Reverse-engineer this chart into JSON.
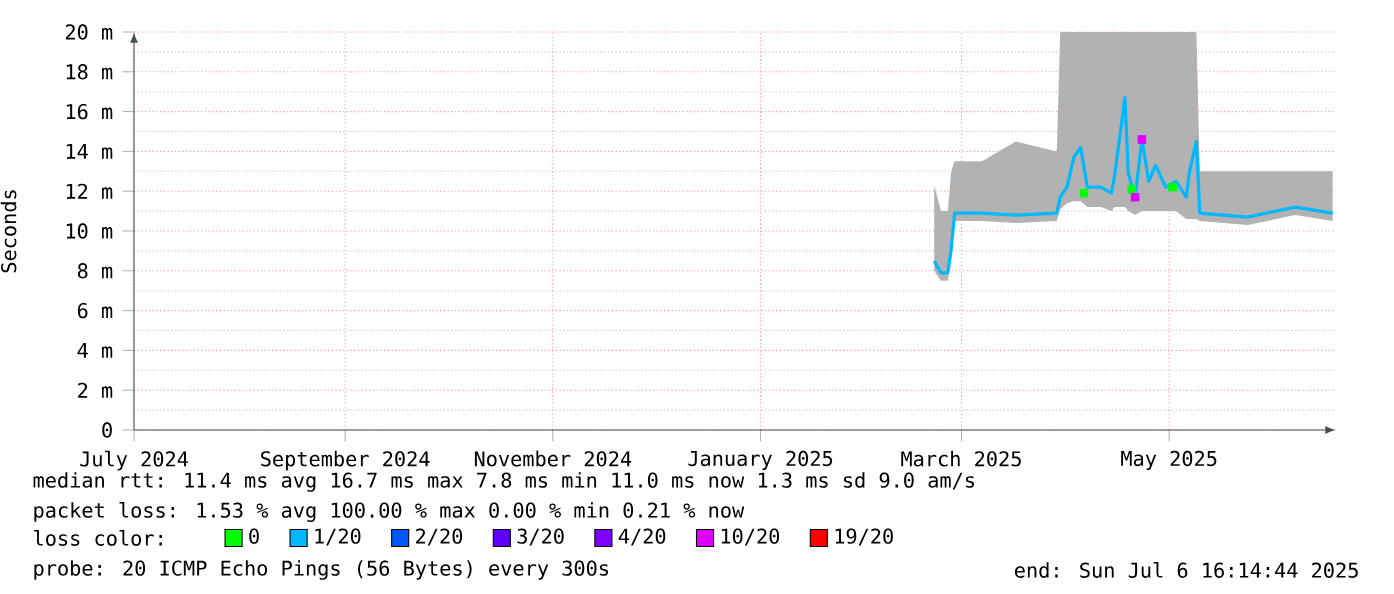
{
  "chart_data": {
    "type": "line",
    "ylabel": "Seconds",
    "xlim": [
      "2024-07-01",
      "2025-06-19"
    ],
    "xticks": [
      {
        "value": "2024-07-01",
        "label": "July 2024"
      },
      {
        "value": "2024-09-01",
        "label": "September 2024"
      },
      {
        "value": "2024-11-01",
        "label": "November 2024"
      },
      {
        "value": "2025-01-01",
        "label": "January 2025"
      },
      {
        "value": "2025-03-01",
        "label": "March 2025"
      },
      {
        "value": "2025-05-01",
        "label": "May 2025"
      }
    ],
    "ylim": [
      0,
      20
    ],
    "yticks": [
      0,
      {
        "value": 2,
        "label": "2 m"
      },
      {
        "value": 4,
        "label": "4 m"
      },
      {
        "value": 6,
        "label": "6 m"
      },
      {
        "value": 8,
        "label": "8 m"
      },
      {
        "value": 10,
        "label": "10 m"
      },
      {
        "value": 12,
        "label": "12 m"
      },
      {
        "value": 14,
        "label": "14 m"
      },
      {
        "value": 16,
        "label": "16 m"
      },
      {
        "value": 18,
        "label": "18 m"
      },
      {
        "value": 20,
        "label": "20 m"
      }
    ],
    "grid": true,
    "legend": "bottom",
    "legend_title": "loss color:",
    "series": [
      {
        "name": "0",
        "type": "scatter",
        "color": "#00ff00",
        "x": [
          "2025-04-06",
          "2025-04-20",
          "2025-05-02"
        ],
        "values": [
          11.9,
          12.1,
          12.2
        ]
      },
      {
        "name": "1/20",
        "color": "#00b8ff",
        "x": [
          "2025-02-21",
          "2025-02-23",
          "2025-02-25",
          "2025-02-26",
          "2025-02-27",
          "2025-03-07",
          "2025-03-17",
          "2025-03-29",
          "2025-03-30",
          "2025-04-01",
          "2025-04-03",
          "2025-04-05",
          "2025-04-07",
          "2025-04-11",
          "2025-04-14",
          "2025-04-15",
          "2025-04-18",
          "2025-04-19",
          "2025-04-21",
          "2025-04-23",
          "2025-04-25",
          "2025-04-27",
          "2025-04-30",
          "2025-05-03",
          "2025-05-06",
          "2025-05-07",
          "2025-05-09",
          "2025-05-10",
          "2025-05-24",
          "2025-06-07",
          "2025-06-18"
        ],
        "values": [
          8.5,
          7.9,
          7.9,
          9.1,
          10.9,
          10.9,
          10.8,
          10.9,
          11.7,
          12.2,
          13.7,
          14.2,
          12.2,
          12.2,
          11.9,
          12.8,
          16.7,
          12.9,
          11.7,
          14.6,
          12.5,
          13.3,
          12.2,
          12.5,
          11.7,
          13.0,
          14.5,
          10.9,
          10.7,
          11.2,
          10.9
        ],
        "lower": [
          8.0,
          7.5,
          7.5,
          8.6,
          10.5,
          10.5,
          10.4,
          10.5,
          11.1,
          11.4,
          11.5,
          11.5,
          11.2,
          11.2,
          11.0,
          11.2,
          11.2,
          11.0,
          10.8,
          11.0,
          11.0,
          11.0,
          11.0,
          11.0,
          10.6,
          10.6,
          10.6,
          10.5,
          10.3,
          10.8,
          10.5
        ],
        "upper": [
          12.3,
          11.0,
          11.0,
          13.0,
          13.5,
          13.5,
          14.5,
          14.0,
          20,
          20,
          20,
          20,
          20,
          20,
          20,
          20,
          20,
          20,
          20,
          20,
          20,
          20,
          20,
          20,
          20,
          20,
          20,
          13.0,
          13.0,
          13.0,
          13.0
        ]
      },
      {
        "name": "2/20",
        "type": "scatter",
        "color": "#0059ff"
      },
      {
        "name": "3/20",
        "type": "scatter",
        "color": "#5e00ff"
      },
      {
        "name": "4/20",
        "type": "scatter",
        "color": "#7e00ff"
      },
      {
        "name": "10/20",
        "type": "scatter",
        "color": "#dd00ff",
        "x": [
          "2025-04-21",
          "2025-04-23"
        ],
        "values": [
          11.7,
          14.6
        ]
      },
      {
        "name": "19/20",
        "type": "scatter",
        "color": "#ff0000"
      }
    ],
    "annotations": [
      "median rtt:  11.4 ms avg  16.7 ms max  7.8 ms min  11.0 ms now  1.3 ms sd  9.0   am/s",
      "packet loss: 1.53 % avg  100.00 % max  0.00 % min  0.21 % now",
      "probe:       20 ICMP Echo Pings (56 Bytes) every 300s",
      "end: Sun Jul  6 16:14:44 2025"
    ]
  }
}
